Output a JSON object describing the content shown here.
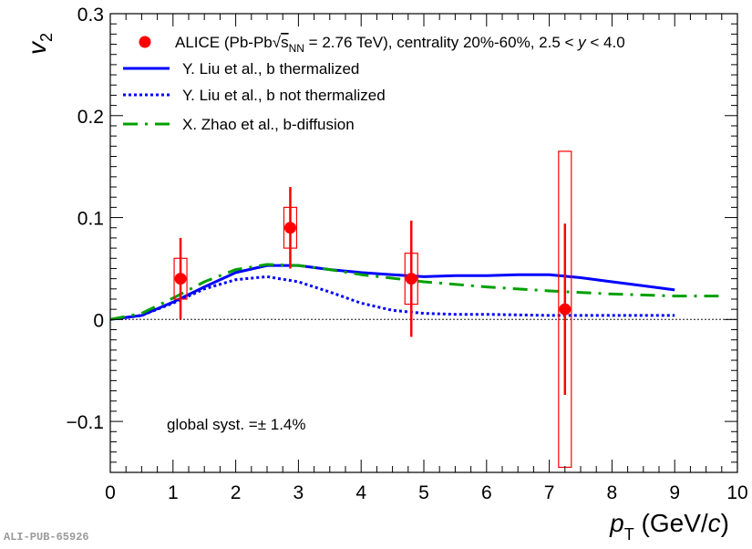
{
  "chart_data": {
    "type": "scatter",
    "xlabel": {
      "main": "p",
      "sub": "T",
      "unit": " (GeV/",
      "unit_var": "c",
      "unit_close": ")"
    },
    "ylabel": {
      "main": "v",
      "sub": "2"
    },
    "xlim": [
      0,
      10
    ],
    "ylim": [
      -0.15,
      0.3
    ],
    "x_ticks": [
      "0",
      "1",
      "2",
      "3",
      "4",
      "5",
      "6",
      "7",
      "8",
      "9",
      "10"
    ],
    "y_ticks": [
      {
        "value": -0.1,
        "label": "−0.1"
      },
      {
        "value": 0,
        "label": "0"
      },
      {
        "value": 0.1,
        "label": "0.1"
      },
      {
        "value": 0.2,
        "label": "0.2"
      },
      {
        "value": 0.3,
        "label": "0.3"
      }
    ],
    "legend": {
      "placement": "top",
      "entries": [
        {
          "key": "data",
          "label_parts": [
            "ALICE (Pb-Pb",
            "√",
            "s",
            "NN",
            " = 2.76 TeV), centrality 20%-60%, 2.5 < ",
            "y",
            " < 4.0"
          ]
        },
        {
          "key": "liu_th",
          "label": "Y. Liu et al., b thermalized"
        },
        {
          "key": "liu_nth",
          "label": "Y. Liu et al., b not thermalized"
        },
        {
          "key": "zhao",
          "label": "X. Zhao et al., b-diffusion"
        }
      ]
    },
    "annotation": "global syst. =± 1.4%",
    "data_points": {
      "name": "ALICE",
      "color": "#ff0000",
      "points": [
        {
          "x": 1.12,
          "y": 0.04,
          "stat_lo": 0.04,
          "stat_hi": 0.04,
          "sys_lo": 0.02,
          "sys_hi": 0.02
        },
        {
          "x": 2.87,
          "y": 0.09,
          "stat_lo": 0.04,
          "stat_hi": 0.04,
          "sys_lo": 0.02,
          "sys_hi": 0.02
        },
        {
          "x": 4.8,
          "y": 0.04,
          "stat_lo": 0.057,
          "stat_hi": 0.057,
          "sys_lo": 0.025,
          "sys_hi": 0.025
        },
        {
          "x": 7.25,
          "y": 0.01,
          "stat_lo": 0.084,
          "stat_hi": 0.084,
          "sys_lo": 0.155,
          "sys_hi": 0.155
        }
      ]
    },
    "series": [
      {
        "key": "liu_th",
        "color": "#0000ff",
        "style": "solid",
        "x": [
          0,
          0.5,
          1.0,
          1.5,
          2.0,
          2.5,
          3.0,
          3.5,
          4.0,
          4.5,
          5.0,
          5.5,
          6.0,
          6.5,
          7.0,
          7.5,
          8.0,
          8.5,
          9.0
        ],
        "y": [
          0,
          0.004,
          0.017,
          0.032,
          0.046,
          0.053,
          0.053,
          0.049,
          0.046,
          0.044,
          0.042,
          0.043,
          0.043,
          0.044,
          0.044,
          0.041,
          0.037,
          0.033,
          0.029
        ]
      },
      {
        "key": "liu_nth",
        "color": "#0000ff",
        "style": "dotted",
        "x": [
          0,
          0.5,
          1.0,
          1.5,
          2.0,
          2.5,
          3.0,
          3.5,
          4.0,
          4.5,
          5.0,
          5.5,
          6.0,
          7.0,
          8.0,
          9.0
        ],
        "y": [
          0,
          0.004,
          0.016,
          0.03,
          0.039,
          0.042,
          0.037,
          0.027,
          0.016,
          0.009,
          0.006,
          0.005,
          0.005,
          0.004,
          0.004,
          0.004
        ]
      },
      {
        "key": "zhao",
        "color": "#00a000",
        "style": "dash-dot",
        "x": [
          0,
          0.5,
          1.0,
          1.5,
          2.0,
          2.5,
          3.0,
          3.5,
          4.0,
          5.0,
          6.0,
          7.0,
          8.0,
          9.0,
          9.7
        ],
        "y": [
          0,
          0.006,
          0.021,
          0.037,
          0.049,
          0.054,
          0.053,
          0.049,
          0.044,
          0.037,
          0.032,
          0.028,
          0.025,
          0.023,
          0.023
        ]
      }
    ]
  },
  "footer": {
    "tag": "ALI-PUB-65926"
  }
}
